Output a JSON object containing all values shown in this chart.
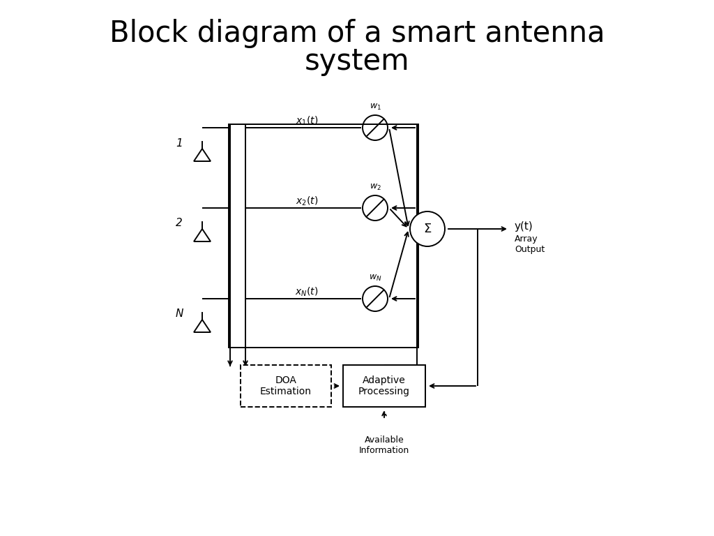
{
  "title_line1": "Block diagram of a smart antenna",
  "title_line2": "system",
  "title_fontsize": 30,
  "bg_color": "#ffffff",
  "lc": "#000000",
  "lw": 1.4,
  "ant_labels": [
    "1",
    "2",
    "N"
  ],
  "sig_labels": [
    "$x_1(t)$",
    "$x_2(t)$",
    "$x_N(t)$"
  ],
  "wt_labels": [
    "$w_1$",
    "$w_2$",
    "$w_N$"
  ],
  "output_label": "y(t)",
  "array_output_label": "Array\nOutput",
  "doa_label": "DOA\nEstimation",
  "adaptive_label": "Adaptive\nProcessing",
  "avail_label": "Available\nInformation",
  "note_fontsize": 9,
  "label_fontsize": 10,
  "small_fontsize": 9
}
